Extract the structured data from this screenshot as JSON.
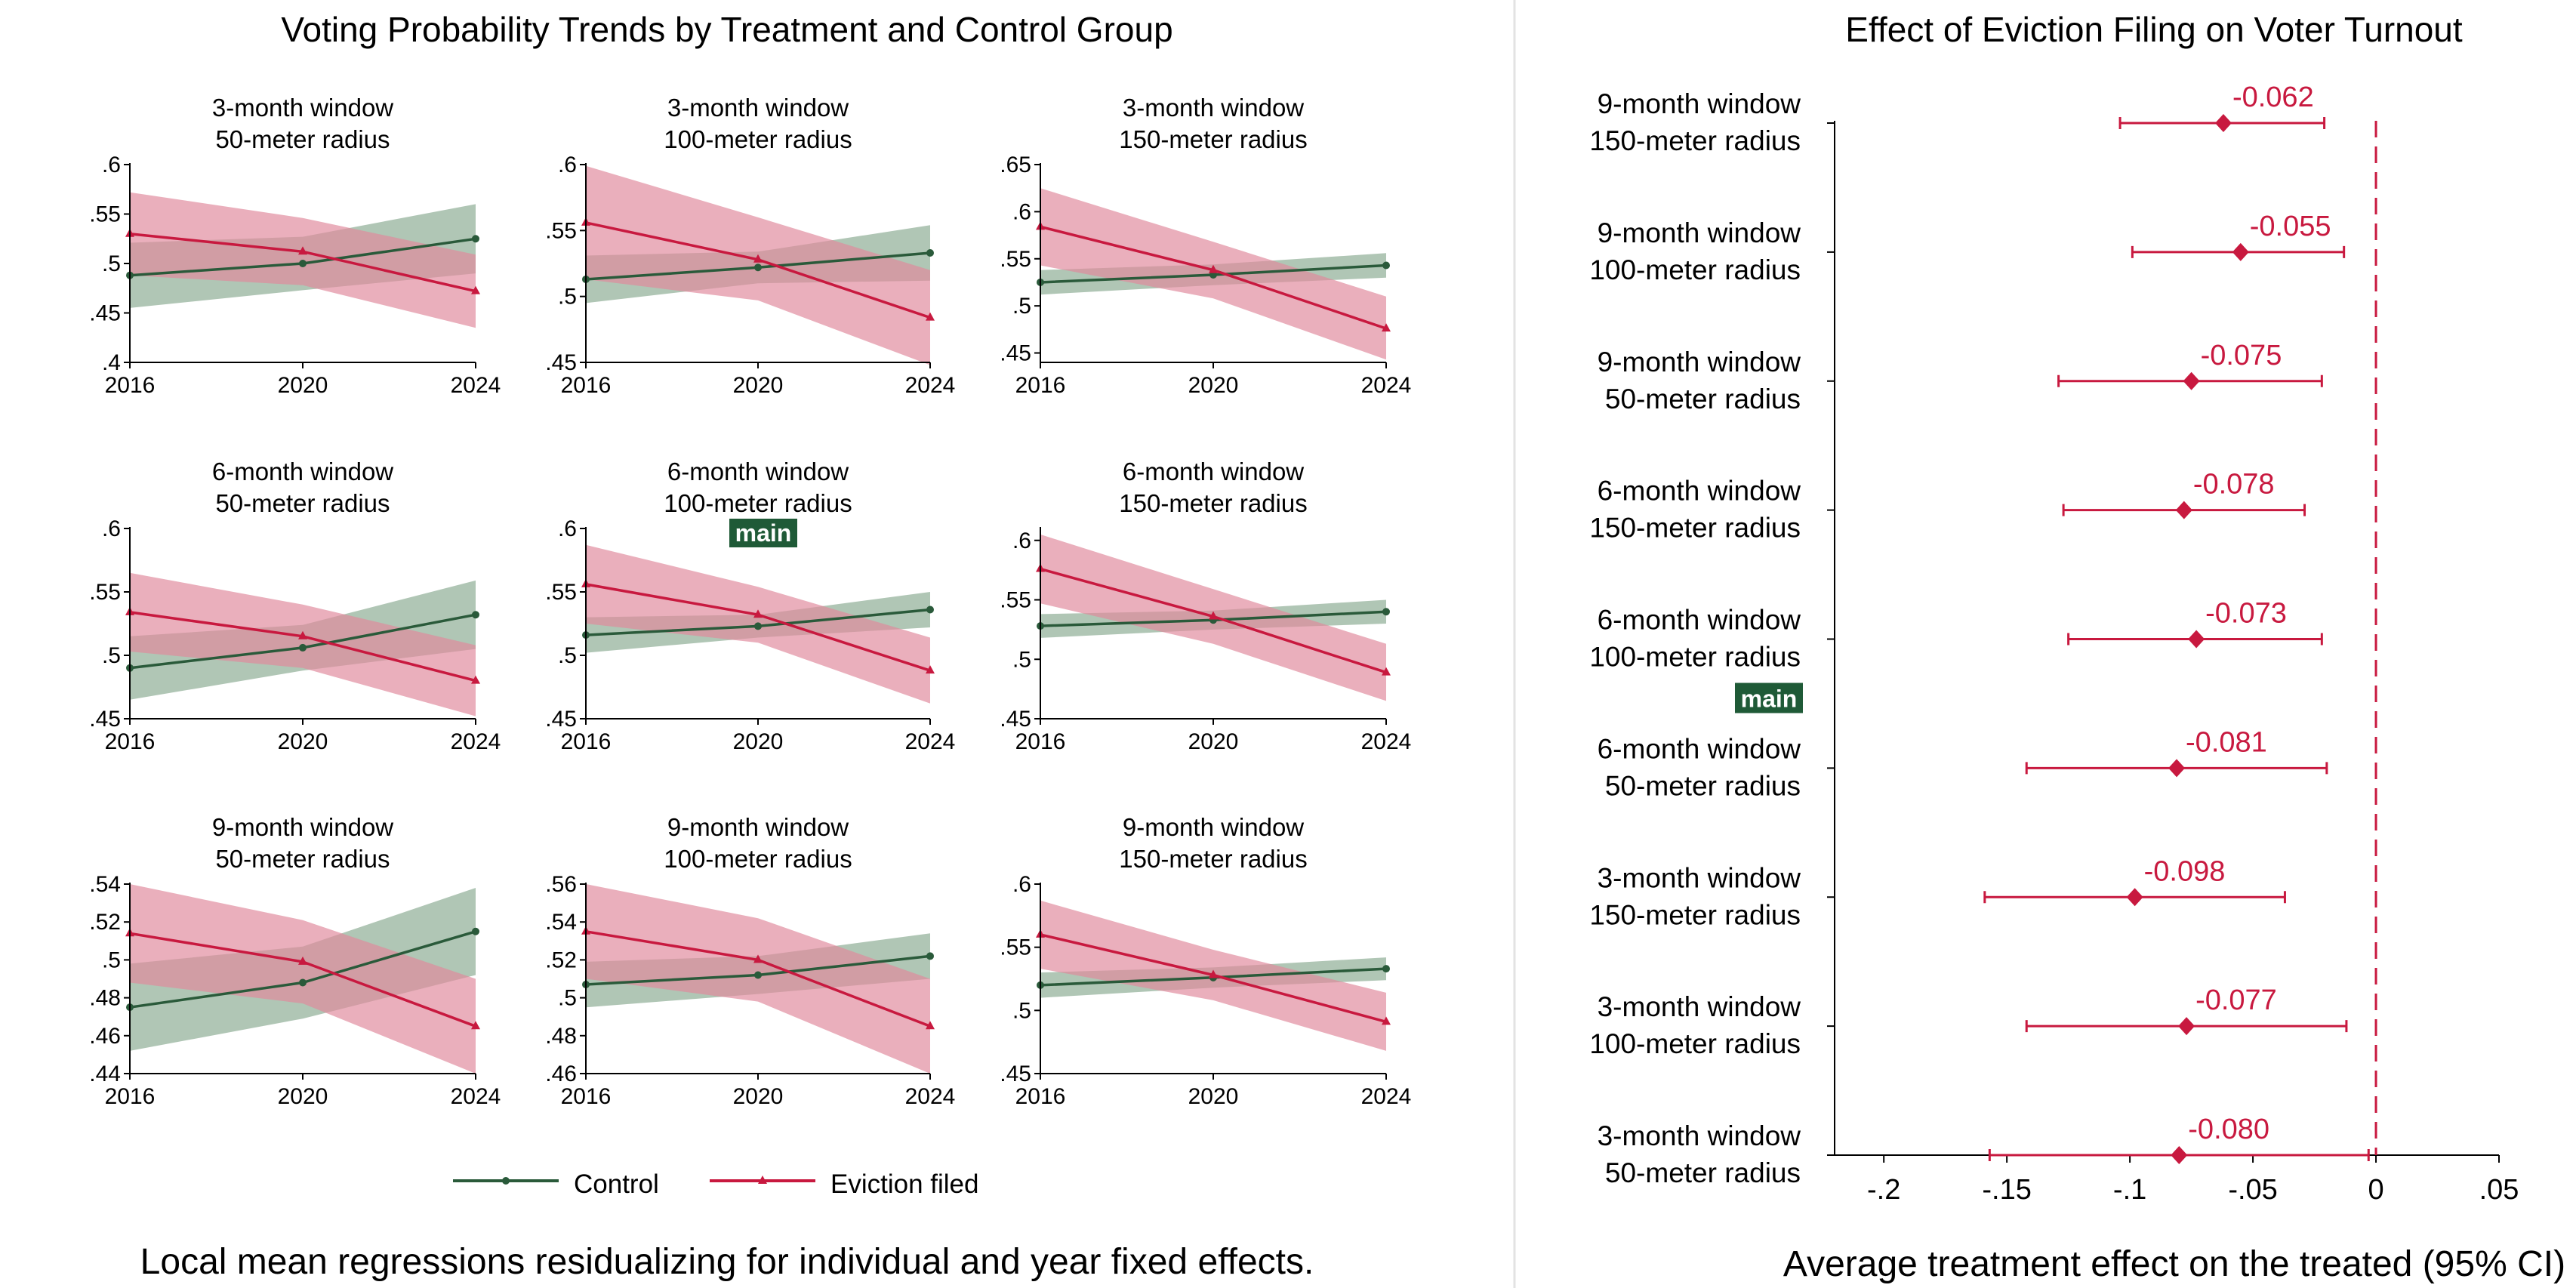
{
  "left_panel": {
    "title": "Voting Probability Trends by Treatment and Control Group",
    "caption": "Local mean regressions residualizing for individual and year fixed effects.",
    "legend": {
      "control": "Control",
      "treated": "Eviction filed"
    },
    "main_badge": "main"
  },
  "right_panel": {
    "title": "Effect of Eviction Filing on Voter Turnout",
    "xlabel": "Average treatment effect on the treated (95% CI)",
    "main_badge": "main"
  },
  "colors": {
    "control": "#2a5a3a",
    "control_band": "#8aab92",
    "treated": "#c8193f",
    "treated_band": "#e0899c",
    "badge_bg": "#1f5a37"
  },
  "chart_data": [
    {
      "type": "line",
      "title": "3-month window",
      "subtitle": "50-meter radius",
      "x": [
        "2016",
        "2020",
        "2024"
      ],
      "ylim": [
        0.4,
        0.6
      ],
      "yticks": [
        0.4,
        0.45,
        0.5,
        0.55,
        0.6
      ],
      "yticklabels": [
        ".4",
        ".45",
        ".5",
        ".55",
        ".6"
      ],
      "series": [
        {
          "name": "Control",
          "values": [
            0.488,
            0.5,
            0.525
          ],
          "lower": [
            0.455,
            0.473,
            0.49
          ],
          "upper": [
            0.521,
            0.527,
            0.56
          ]
        },
        {
          "name": "Eviction filed",
          "values": [
            0.53,
            0.512,
            0.472
          ],
          "lower": [
            0.488,
            0.478,
            0.435
          ],
          "upper": [
            0.572,
            0.546,
            0.509
          ]
        }
      ]
    },
    {
      "type": "line",
      "title": "3-month window",
      "subtitle": "100-meter radius",
      "x": [
        "2016",
        "2020",
        "2024"
      ],
      "ylim": [
        0.45,
        0.6
      ],
      "yticks": [
        0.45,
        0.5,
        0.55,
        0.6
      ],
      "yticklabels": [
        ".45",
        ".5",
        ".55",
        ".6"
      ],
      "series": [
        {
          "name": "Control",
          "values": [
            0.513,
            0.522,
            0.533
          ],
          "lower": [
            0.495,
            0.51,
            0.512
          ],
          "upper": [
            0.531,
            0.534,
            0.554
          ]
        },
        {
          "name": "Eviction filed",
          "values": [
            0.556,
            0.528,
            0.484
          ],
          "lower": [
            0.513,
            0.497,
            0.448
          ],
          "upper": [
            0.599,
            0.56,
            0.52
          ]
        }
      ]
    },
    {
      "type": "line",
      "title": "3-month window",
      "subtitle": "150-meter radius",
      "x": [
        "2016",
        "2020",
        "2024"
      ],
      "ylim": [
        0.44,
        0.65
      ],
      "yticks": [
        0.45,
        0.5,
        0.55,
        0.6,
        0.65
      ],
      "yticklabels": [
        ".45",
        ".5",
        ".55",
        ".6",
        ".65"
      ],
      "series": [
        {
          "name": "Control",
          "values": [
            0.525,
            0.533,
            0.543
          ],
          "lower": [
            0.512,
            0.522,
            0.53
          ],
          "upper": [
            0.538,
            0.544,
            0.556
          ]
        },
        {
          "name": "Eviction filed",
          "values": [
            0.584,
            0.538,
            0.476
          ],
          "lower": [
            0.543,
            0.508,
            0.443
          ],
          "upper": [
            0.625,
            0.568,
            0.51
          ]
        }
      ]
    },
    {
      "type": "line",
      "title": "6-month window",
      "subtitle": "50-meter radius",
      "x": [
        "2016",
        "2020",
        "2024"
      ],
      "ylim": [
        0.45,
        0.6
      ],
      "yticks": [
        0.45,
        0.5,
        0.55,
        0.6
      ],
      "yticklabels": [
        ".45",
        ".5",
        ".55",
        ".6"
      ],
      "series": [
        {
          "name": "Control",
          "values": [
            0.49,
            0.506,
            0.532
          ],
          "lower": [
            0.465,
            0.488,
            0.505
          ],
          "upper": [
            0.515,
            0.524,
            0.559
          ]
        },
        {
          "name": "Eviction filed",
          "values": [
            0.534,
            0.515,
            0.48
          ],
          "lower": [
            0.503,
            0.49,
            0.452
          ],
          "upper": [
            0.565,
            0.54,
            0.508
          ]
        }
      ]
    },
    {
      "type": "line",
      "title": "6-month window",
      "subtitle": "100-meter radius",
      "x": [
        "2016",
        "2020",
        "2024"
      ],
      "ylim": [
        0.45,
        0.6
      ],
      "yticks": [
        0.45,
        0.5,
        0.55,
        0.6
      ],
      "yticklabels": [
        ".45",
        ".5",
        ".55",
        ".6"
      ],
      "badge": true,
      "series": [
        {
          "name": "Control",
          "values": [
            0.516,
            0.523,
            0.536
          ],
          "lower": [
            0.502,
            0.514,
            0.522
          ],
          "upper": [
            0.53,
            0.532,
            0.55
          ]
        },
        {
          "name": "Eviction filed",
          "values": [
            0.556,
            0.532,
            0.488
          ],
          "lower": [
            0.525,
            0.51,
            0.462
          ],
          "upper": [
            0.587,
            0.554,
            0.514
          ]
        }
      ]
    },
    {
      "type": "line",
      "title": "6-month window",
      "subtitle": "150-meter radius",
      "x": [
        "2016",
        "2020",
        "2024"
      ],
      "ylim": [
        0.45,
        0.61
      ],
      "yticks": [
        0.45,
        0.5,
        0.55,
        0.6
      ],
      "yticklabels": [
        ".45",
        ".5",
        ".55",
        ".6"
      ],
      "series": [
        {
          "name": "Control",
          "values": [
            0.528,
            0.533,
            0.54
          ],
          "lower": [
            0.518,
            0.525,
            0.53
          ],
          "upper": [
            0.538,
            0.541,
            0.55
          ]
        },
        {
          "name": "Eviction filed",
          "values": [
            0.576,
            0.536,
            0.489
          ],
          "lower": [
            0.547,
            0.513,
            0.465
          ],
          "upper": [
            0.605,
            0.559,
            0.513
          ]
        }
      ]
    },
    {
      "type": "line",
      "title": "9-month window",
      "subtitle": "50-meter radius",
      "x": [
        "2016",
        "2020",
        "2024"
      ],
      "ylim": [
        0.44,
        0.54
      ],
      "yticks": [
        0.44,
        0.46,
        0.48,
        0.5,
        0.52,
        0.54
      ],
      "yticklabels": [
        ".44",
        ".46",
        ".48",
        ".5",
        ".52",
        ".54"
      ],
      "series": [
        {
          "name": "Control",
          "values": [
            0.475,
            0.488,
            0.515
          ],
          "lower": [
            0.452,
            0.469,
            0.492
          ],
          "upper": [
            0.498,
            0.507,
            0.538
          ]
        },
        {
          "name": "Eviction filed",
          "values": [
            0.514,
            0.499,
            0.465
          ],
          "lower": [
            0.488,
            0.477,
            0.44
          ],
          "upper": [
            0.54,
            0.521,
            0.49
          ]
        }
      ]
    },
    {
      "type": "line",
      "title": "9-month window",
      "subtitle": "100-meter radius",
      "x": [
        "2016",
        "2020",
        "2024"
      ],
      "ylim": [
        0.46,
        0.56
      ],
      "yticks": [
        0.46,
        0.48,
        0.5,
        0.52,
        0.54,
        0.56
      ],
      "yticklabels": [
        ".46",
        ".48",
        ".5",
        ".52",
        ".54",
        ".56"
      ],
      "series": [
        {
          "name": "Control",
          "values": [
            0.507,
            0.512,
            0.522
          ],
          "lower": [
            0.495,
            0.502,
            0.51
          ],
          "upper": [
            0.519,
            0.522,
            0.534
          ]
        },
        {
          "name": "Eviction filed",
          "values": [
            0.535,
            0.52,
            0.485
          ],
          "lower": [
            0.51,
            0.498,
            0.46
          ],
          "upper": [
            0.56,
            0.542,
            0.51
          ]
        }
      ]
    },
    {
      "type": "line",
      "title": "9-month window",
      "subtitle": "150-meter radius",
      "x": [
        "2016",
        "2020",
        "2024"
      ],
      "ylim": [
        0.45,
        0.6
      ],
      "yticks": [
        0.45,
        0.5,
        0.55,
        0.6
      ],
      "yticklabels": [
        ".45",
        ".5",
        ".55",
        ".6"
      ],
      "series": [
        {
          "name": "Control",
          "values": [
            0.52,
            0.526,
            0.533
          ],
          "lower": [
            0.51,
            0.518,
            0.524
          ],
          "upper": [
            0.53,
            0.534,
            0.542
          ]
        },
        {
          "name": "Eviction filed",
          "values": [
            0.56,
            0.528,
            0.491
          ],
          "lower": [
            0.533,
            0.508,
            0.468
          ],
          "upper": [
            0.587,
            0.548,
            0.514
          ]
        }
      ]
    },
    {
      "type": "scatter",
      "title": "Effect of Eviction Filing on Voter Turnout",
      "xlabel": "Average treatment effect on the treated (95% CI)",
      "xlim": [
        -0.22,
        0.05
      ],
      "xticks": [
        -0.2,
        -0.15,
        -0.1,
        -0.05,
        0,
        0.05
      ],
      "xticklabels": [
        "-.2",
        "-.15",
        "-.1",
        "-.05",
        "0",
        ".05"
      ],
      "reference_line": 0,
      "points": [
        {
          "line1": "9-month window",
          "line2": "150-meter radius",
          "estimate": -0.062,
          "label": "-0.062",
          "ci": [
            -0.104,
            -0.021
          ]
        },
        {
          "line1": "9-month window",
          "line2": "100-meter radius",
          "estimate": -0.055,
          "label": "-0.055",
          "ci": [
            -0.099,
            -0.013
          ]
        },
        {
          "line1": "9-month window",
          "line2": "50-meter radius",
          "estimate": -0.075,
          "label": "-0.075",
          "ci": [
            -0.129,
            -0.022
          ]
        },
        {
          "line1": "6-month window",
          "line2": "150-meter radius",
          "estimate": -0.078,
          "label": "-0.078",
          "ci": [
            -0.127,
            -0.029
          ]
        },
        {
          "line1": "6-month window",
          "line2": "100-meter radius",
          "estimate": -0.073,
          "label": "-0.073",
          "ci": [
            -0.125,
            -0.022
          ],
          "badge": true
        },
        {
          "line1": "6-month window",
          "line2": "50-meter radius",
          "estimate": -0.081,
          "label": "-0.081",
          "ci": [
            -0.142,
            -0.02
          ]
        },
        {
          "line1": "3-month window",
          "line2": "150-meter radius",
          "estimate": -0.098,
          "label": "-0.098",
          "ci": [
            -0.159,
            -0.037
          ]
        },
        {
          "line1": "3-month window",
          "line2": "100-meter radius",
          "estimate": -0.077,
          "label": "-0.077",
          "ci": [
            -0.142,
            -0.012
          ]
        },
        {
          "line1": "3-month window",
          "line2": "50-meter radius",
          "estimate": -0.08,
          "label": "-0.080",
          "ci": [
            -0.157,
            -0.003
          ]
        }
      ]
    }
  ]
}
